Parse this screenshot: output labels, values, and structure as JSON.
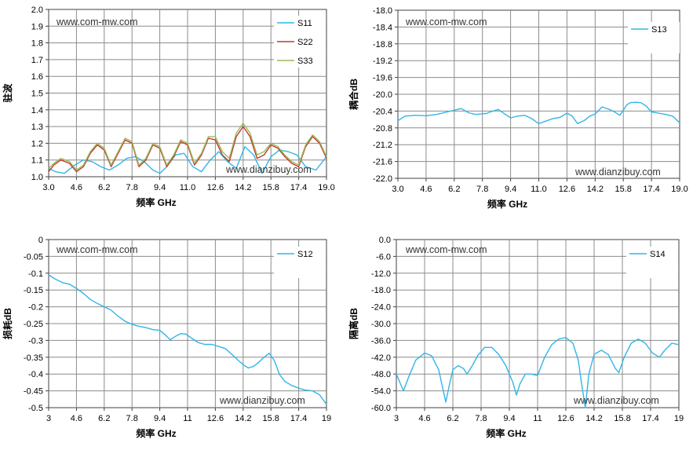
{
  "colors": {
    "s11": "#31B6E6",
    "s22": "#C0392B",
    "s33": "#9BBB59",
    "grid": "#8C8C8C",
    "axis": "#404040"
  },
  "chart_data": [
    {
      "id": "vswr",
      "type": "line",
      "title": "",
      "xlabel": "频率 GHz",
      "ylabel": "驻波",
      "watermarks": [
        "www.com-mw.com",
        "www.dianzibuy.com"
      ],
      "xlim": [
        3.0,
        19.0
      ],
      "ylim": [
        1.0,
        2.0
      ],
      "xticks": [
        "3.0",
        "4.6",
        "6.2",
        "7.8",
        "9.4",
        "11.0",
        "12.6",
        "14.2",
        "15.8",
        "17.4",
        "19.0"
      ],
      "yticks": [
        "2.0",
        "1.9",
        "1.8",
        "1.7",
        "1.6",
        "1.5",
        "1.4",
        "1.3",
        "1.2",
        "1.1",
        "1.0"
      ],
      "legend": "top-right",
      "series": [
        {
          "name": "S11",
          "color": "#31B6E6",
          "x": [
            3.0,
            3.4,
            3.9,
            4.5,
            5.0,
            5.5,
            6.0,
            6.5,
            7.0,
            7.5,
            8.0,
            8.5,
            9.0,
            9.4,
            9.8,
            10.3,
            10.8,
            11.3,
            11.8,
            12.3,
            12.8,
            13.3,
            13.8,
            14.3,
            14.8,
            15.3,
            15.8,
            16.3,
            16.8,
            17.3,
            17.8,
            18.4,
            19.0
          ],
          "y": [
            1.05,
            1.03,
            1.02,
            1.07,
            1.1,
            1.09,
            1.06,
            1.04,
            1.07,
            1.11,
            1.12,
            1.09,
            1.04,
            1.02,
            1.06,
            1.13,
            1.14,
            1.06,
            1.03,
            1.1,
            1.15,
            1.09,
            1.05,
            1.18,
            1.13,
            1.02,
            1.12,
            1.16,
            1.15,
            1.13,
            1.06,
            1.04,
            1.12
          ]
        },
        {
          "name": "S22",
          "color": "#C0392B",
          "x": [
            3.0,
            3.3,
            3.7,
            4.2,
            4.6,
            5.0,
            5.4,
            5.8,
            6.2,
            6.6,
            7.0,
            7.4,
            7.8,
            8.2,
            8.6,
            9.0,
            9.4,
            9.8,
            10.2,
            10.6,
            11.0,
            11.4,
            11.8,
            12.2,
            12.6,
            13.0,
            13.4,
            13.8,
            14.2,
            14.6,
            15.0,
            15.4,
            15.8,
            16.2,
            16.6,
            17.0,
            17.4,
            17.8,
            18.2,
            18.6,
            19.0
          ],
          "y": [
            1.03,
            1.07,
            1.1,
            1.08,
            1.03,
            1.06,
            1.14,
            1.19,
            1.16,
            1.06,
            1.14,
            1.22,
            1.2,
            1.06,
            1.1,
            1.19,
            1.17,
            1.06,
            1.12,
            1.21,
            1.19,
            1.07,
            1.13,
            1.23,
            1.22,
            1.13,
            1.09,
            1.24,
            1.3,
            1.24,
            1.11,
            1.13,
            1.19,
            1.17,
            1.12,
            1.08,
            1.06,
            1.18,
            1.24,
            1.2,
            1.11
          ]
        },
        {
          "name": "S33",
          "color": "#9BBB59",
          "x": [
            3.0,
            3.3,
            3.7,
            4.2,
            4.6,
            5.0,
            5.4,
            5.8,
            6.2,
            6.6,
            7.0,
            7.4,
            7.8,
            8.2,
            8.6,
            9.0,
            9.4,
            9.8,
            10.2,
            10.6,
            11.0,
            11.4,
            11.8,
            12.2,
            12.6,
            13.0,
            13.4,
            13.8,
            14.2,
            14.6,
            15.0,
            15.4,
            15.8,
            16.2,
            16.6,
            17.0,
            17.4,
            17.8,
            18.2,
            18.6,
            19.0
          ],
          "y": [
            1.05,
            1.08,
            1.11,
            1.09,
            1.04,
            1.07,
            1.15,
            1.2,
            1.17,
            1.07,
            1.15,
            1.23,
            1.21,
            1.07,
            1.11,
            1.2,
            1.18,
            1.07,
            1.13,
            1.22,
            1.2,
            1.08,
            1.14,
            1.24,
            1.24,
            1.15,
            1.11,
            1.26,
            1.32,
            1.26,
            1.13,
            1.15,
            1.2,
            1.18,
            1.13,
            1.09,
            1.07,
            1.19,
            1.25,
            1.21,
            1.12
          ]
        }
      ]
    },
    {
      "id": "coupling",
      "type": "line",
      "title": "",
      "xlabel": "频率 GHz",
      "ylabel": "耦合dB",
      "watermarks": [
        "www.com-mw.com",
        "www.dianzibuy.com"
      ],
      "xlim": [
        3.0,
        19.0
      ],
      "ylim": [
        -22.0,
        -18.0
      ],
      "xticks": [
        "3.0",
        "4.6",
        "6.2",
        "7.8",
        "9.4",
        "11.0",
        "12.6",
        "14.2",
        "15.8",
        "17.4",
        "19.0"
      ],
      "yticks": [
        "-18.0",
        "-18.4",
        "-18.8",
        "-19.2",
        "-19.6",
        "-20.0",
        "-20.4",
        "-20.8",
        "-21.2",
        "-21.6",
        "-22.0"
      ],
      "legend": "top-right",
      "series": [
        {
          "name": "S13",
          "color": "#31B6E6",
          "x": [
            3.0,
            3.4,
            4.0,
            4.6,
            5.2,
            5.8,
            6.2,
            6.6,
            7.0,
            7.4,
            8.0,
            8.4,
            8.7,
            9.0,
            9.4,
            9.8,
            10.2,
            10.6,
            11.0,
            11.4,
            11.8,
            12.2,
            12.6,
            12.9,
            13.2,
            13.6,
            13.9,
            14.2,
            14.6,
            15.0,
            15.3,
            15.6,
            15.8,
            16.0,
            16.2,
            16.5,
            16.8,
            17.1,
            17.4,
            17.8,
            18.2,
            18.6,
            19.0
          ],
          "y": [
            -20.63,
            -20.52,
            -20.5,
            -20.51,
            -20.48,
            -20.42,
            -20.38,
            -20.34,
            -20.44,
            -20.48,
            -20.46,
            -20.4,
            -20.36,
            -20.45,
            -20.56,
            -20.52,
            -20.5,
            -20.58,
            -20.7,
            -20.64,
            -20.58,
            -20.55,
            -20.45,
            -20.52,
            -20.7,
            -20.62,
            -20.52,
            -20.47,
            -20.3,
            -20.36,
            -20.42,
            -20.5,
            -20.38,
            -20.25,
            -20.2,
            -20.19,
            -20.2,
            -20.28,
            -20.42,
            -20.45,
            -20.48,
            -20.52,
            -20.68
          ]
        }
      ]
    },
    {
      "id": "loss",
      "type": "line",
      "title": "",
      "xlabel": "频率 GHz",
      "ylabel": "损耗dB",
      "watermarks": [
        "www.com-mw.com",
        "www.dianzibuy.com"
      ],
      "xlim": [
        3.0,
        19.0
      ],
      "ylim": [
        -0.5,
        0.0
      ],
      "xticks": [
        "3",
        "4.6",
        "6.2",
        "7.8",
        "9.4",
        "11",
        "12.6",
        "14.2",
        "15.8",
        "17.4",
        "19"
      ],
      "yticks": [
        "0",
        "-0.05",
        "-0.1",
        "-0.15",
        "-0.2",
        "-0.25",
        "-0.3",
        "-0.35",
        "-0.4",
        "-0.45",
        "-0.5"
      ],
      "legend": "top-right",
      "series": [
        {
          "name": "S12",
          "color": "#31B6E6",
          "x": [
            3.0,
            3.4,
            3.8,
            4.2,
            4.6,
            5.0,
            5.4,
            5.8,
            6.2,
            6.6,
            7.0,
            7.4,
            7.8,
            8.2,
            8.6,
            9.0,
            9.4,
            9.7,
            10.0,
            10.3,
            10.6,
            10.9,
            11.2,
            11.6,
            12.0,
            12.4,
            12.8,
            13.2,
            13.6,
            14.0,
            14.2,
            14.5,
            14.8,
            15.1,
            15.4,
            15.7,
            16.0,
            16.3,
            16.6,
            17.0,
            17.4,
            17.8,
            18.2,
            18.6,
            19.0
          ],
          "y": [
            -0.105,
            -0.118,
            -0.128,
            -0.133,
            -0.145,
            -0.16,
            -0.178,
            -0.19,
            -0.2,
            -0.21,
            -0.228,
            -0.243,
            -0.252,
            -0.258,
            -0.262,
            -0.268,
            -0.27,
            -0.283,
            -0.298,
            -0.288,
            -0.28,
            -0.281,
            -0.292,
            -0.306,
            -0.312,
            -0.312,
            -0.318,
            -0.325,
            -0.344,
            -0.363,
            -0.372,
            -0.382,
            -0.377,
            -0.365,
            -0.35,
            -0.338,
            -0.36,
            -0.402,
            -0.422,
            -0.434,
            -0.442,
            -0.448,
            -0.45,
            -0.462,
            -0.49
          ]
        }
      ]
    },
    {
      "id": "isolation",
      "type": "line",
      "title": "",
      "xlabel": "频率 GHz",
      "ylabel": "隔离dB",
      "watermarks": [
        "www.com-mw.com",
        "www.dianzibuy.com"
      ],
      "xlim": [
        3.0,
        19.0
      ],
      "ylim": [
        -60.0,
        0.0
      ],
      "xticks": [
        "3",
        "4.6",
        "6.2",
        "7.8",
        "9.4",
        "11",
        "12.6",
        "14.2",
        "15.8",
        "17.4",
        "19"
      ],
      "yticks": [
        "0.0",
        "-6.0",
        "-12.0",
        "-18.0",
        "-24.0",
        "-30.0",
        "-36.0",
        "-42.0",
        "-48.0",
        "-54.0",
        "-60.0"
      ],
      "legend": "top-right",
      "series": [
        {
          "name": "S14",
          "color": "#31B6E6",
          "x": [
            3.0,
            3.2,
            3.4,
            3.7,
            4.1,
            4.6,
            5.0,
            5.4,
            5.8,
            6.0,
            6.2,
            6.5,
            6.8,
            7.0,
            7.3,
            7.6,
            8.0,
            8.4,
            8.8,
            9.2,
            9.6,
            9.8,
            10.0,
            10.3,
            10.6,
            11.0,
            11.4,
            11.8,
            12.2,
            12.6,
            13.0,
            13.3,
            13.5,
            13.7,
            13.9,
            14.2,
            14.6,
            15.0,
            15.4,
            15.6,
            15.9,
            16.3,
            16.7,
            17.1,
            17.5,
            17.9,
            18.2,
            18.6,
            19.0
          ],
          "y": [
            -48.0,
            -51.0,
            -54.0,
            -49.0,
            -43.0,
            -40.5,
            -41.5,
            -46.5,
            -58.0,
            -52.0,
            -46.5,
            -45.0,
            -46.0,
            -48.0,
            -45.0,
            -41.5,
            -38.5,
            -38.5,
            -41.0,
            -45.0,
            -51.0,
            -55.5,
            -51.5,
            -48.0,
            -48.0,
            -48.5,
            -42.0,
            -37.5,
            -35.5,
            -35.0,
            -37.0,
            -43.0,
            -52.0,
            -60.0,
            -48.0,
            -41.0,
            -39.5,
            -41.0,
            -46.0,
            -47.5,
            -42.0,
            -37.0,
            -35.5,
            -37.0,
            -40.5,
            -42.0,
            -39.5,
            -37.0,
            -37.5
          ]
        }
      ]
    }
  ]
}
